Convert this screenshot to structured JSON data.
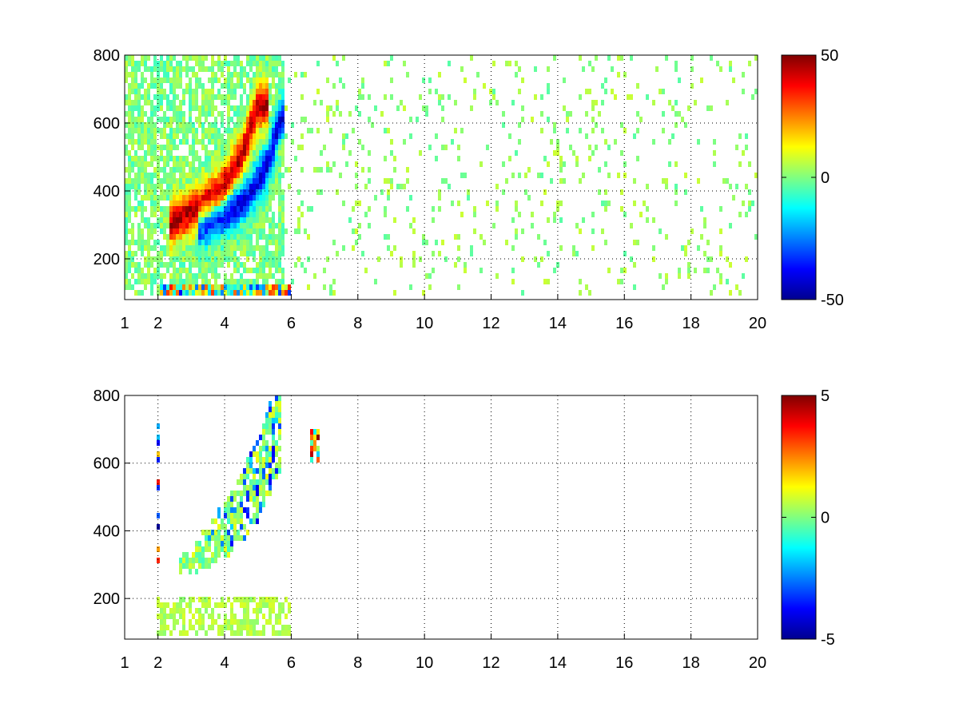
{
  "chart_data": [
    {
      "type": "heatmap",
      "title": "",
      "xlabel": "",
      "ylabel": "",
      "xlim": [
        1,
        20
      ],
      "ylim": [
        80,
        800
      ],
      "xticks": [
        1,
        2,
        4,
        6,
        8,
        10,
        12,
        14,
        16,
        18,
        20
      ],
      "xtick_labels": [
        "1",
        "2",
        "4",
        "6",
        "8",
        "10",
        "12",
        "14",
        "16",
        "18",
        "20"
      ],
      "yticks": [
        200,
        400,
        600,
        800
      ],
      "ytick_labels": [
        "200",
        "400",
        "600",
        "800"
      ],
      "grid": true,
      "colormap": "jet",
      "clim": [
        -50,
        50
      ],
      "colorbar_ticks": [
        50,
        0,
        -50
      ],
      "colorbar_tick_labels": [
        "50",
        "0",
        "-50"
      ],
      "features": [
        {
          "kind": "positive_ridge",
          "x": [
            2.3,
            3.2,
            3.9,
            4.5,
            5.0
          ],
          "y": [
            300,
            350,
            400,
            500,
            650
          ],
          "peak": 45
        },
        {
          "kind": "negative_ridge",
          "x": [
            3.2,
            4.0,
            4.7,
            5.3,
            5.7
          ],
          "y": [
            290,
            330,
            380,
            480,
            620
          ],
          "peak": -40
        },
        {
          "kind": "scattered_noise",
          "x_range": [
            1,
            20
          ],
          "y_range": [
            80,
            800
          ],
          "amplitude": 6
        },
        {
          "kind": "low_band",
          "x_range": [
            2,
            6
          ],
          "y_range": [
            80,
            120
          ]
        }
      ]
    },
    {
      "type": "heatmap",
      "title": "",
      "xlabel": "",
      "ylabel": "",
      "xlim": [
        1,
        20
      ],
      "ylim": [
        80,
        800
      ],
      "xticks": [
        1,
        2,
        4,
        6,
        8,
        10,
        12,
        14,
        16,
        18,
        20
      ],
      "xtick_labels": [
        "1",
        "2",
        "4",
        "6",
        "8",
        "10",
        "12",
        "14",
        "16",
        "18",
        "20"
      ],
      "yticks": [
        200,
        400,
        600,
        800
      ],
      "ytick_labels": [
        "200",
        "400",
        "600",
        "800"
      ],
      "grid": true,
      "colormap": "jet",
      "clim": [
        -5,
        5
      ],
      "colorbar_ticks": [
        5,
        0,
        -5
      ],
      "colorbar_tick_labels": [
        "5",
        "0",
        "-5"
      ],
      "features": [
        {
          "kind": "ridge_band",
          "x": [
            2.6,
            3.5,
            4.3,
            5.0,
            5.7
          ],
          "y": [
            300,
            330,
            380,
            470,
            620
          ],
          "mean": 0.2
        },
        {
          "kind": "scattered_negative",
          "x_range": [
            3.5,
            5.8
          ],
          "y_range": [
            350,
            650
          ],
          "peak": -4
        },
        {
          "kind": "low_band",
          "x_range": [
            2,
            6
          ],
          "y_range": [
            80,
            210
          ],
          "mean": 0.5
        },
        {
          "kind": "column",
          "x": 2.0,
          "y_range": [
            300,
            740
          ]
        },
        {
          "kind": "small_cluster",
          "x": 6.7,
          "y_range": [
            600,
            720
          ]
        }
      ]
    }
  ]
}
